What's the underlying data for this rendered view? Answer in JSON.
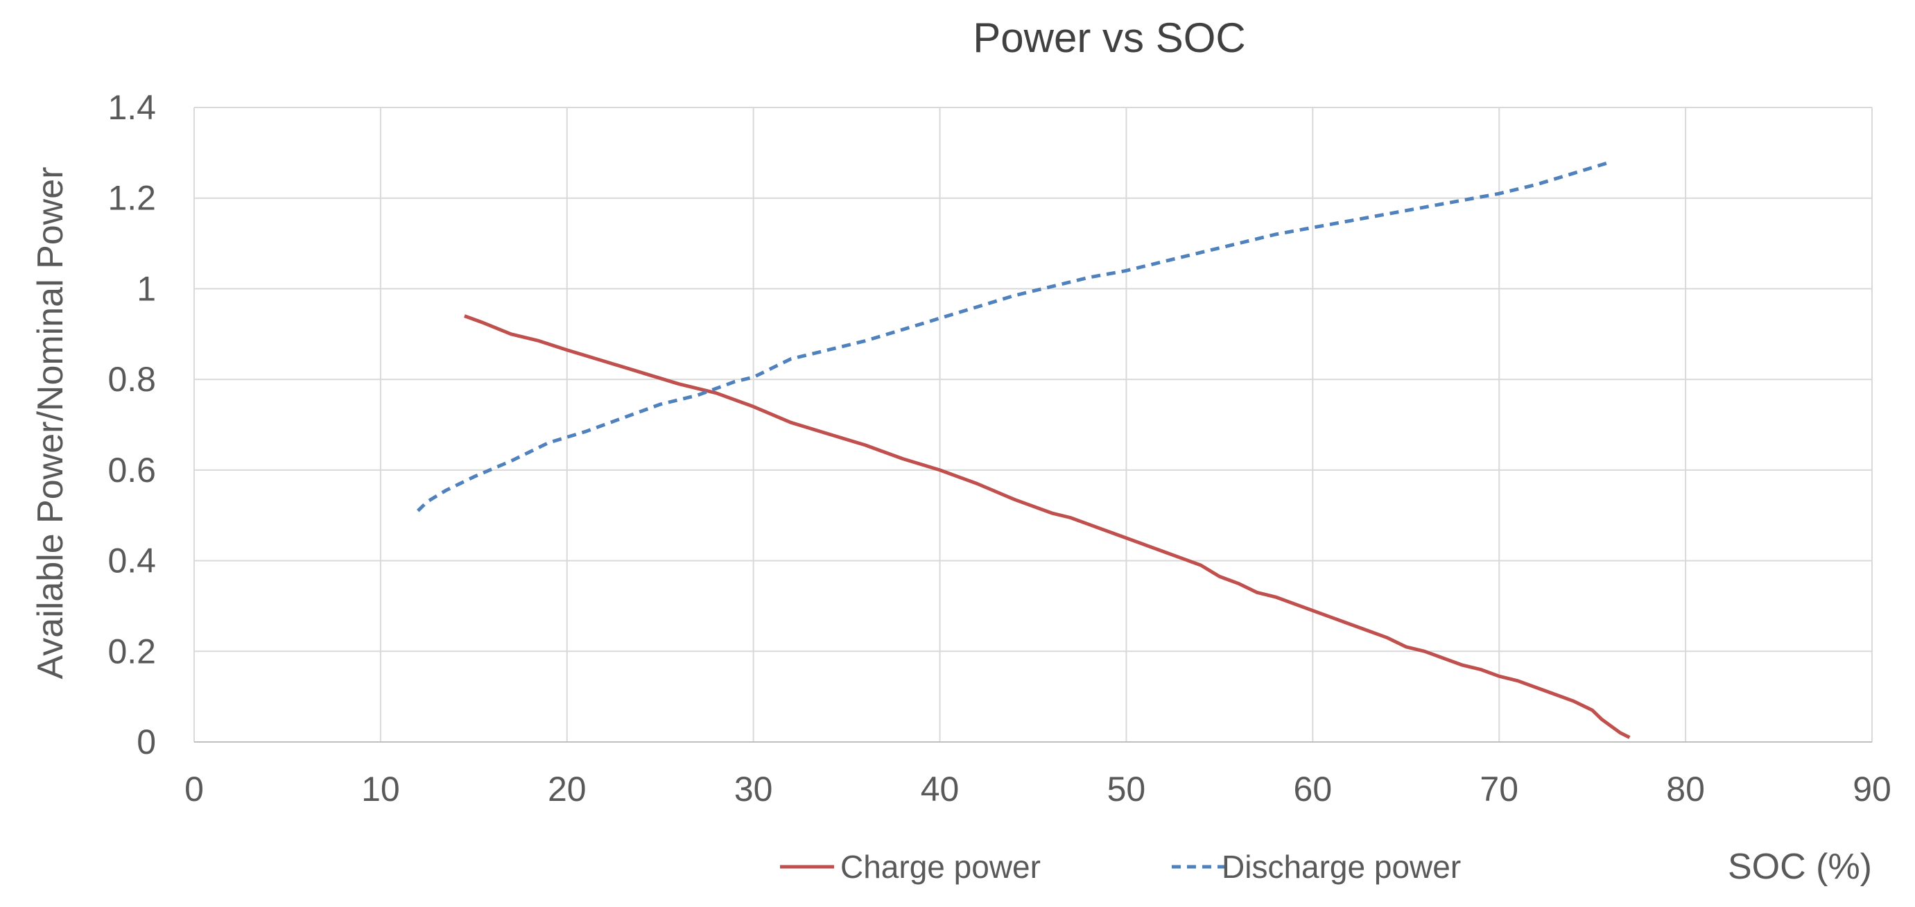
{
  "chart_data": {
    "type": "line",
    "title": "Power vs SOC",
    "xlabel": "SOC (%)",
    "ylabel": "Available Power/Nominal Power",
    "xlim": [
      0,
      90
    ],
    "ylim": [
      0,
      1.4
    ],
    "xticks": [
      0,
      10,
      20,
      30,
      40,
      50,
      60,
      70,
      80,
      90
    ],
    "yticks": [
      0,
      0.2,
      0.4,
      0.6,
      0.8,
      1,
      1.2,
      1.4
    ],
    "ytick_labels": [
      "0",
      "0.2",
      "0.4",
      "0.6",
      "0.8",
      "1",
      "1.2",
      "1.4"
    ],
    "grid": true,
    "legend_position": "bottom",
    "series": [
      {
        "name": "Charge power",
        "color": "#C0504D",
        "line_style": "solid",
        "x": [
          14.5,
          15.5,
          17,
          18.5,
          20,
          22,
          24,
          26,
          28,
          30,
          32,
          34,
          36,
          38,
          40,
          42,
          44,
          46,
          47,
          48,
          50,
          51,
          52,
          53,
          54,
          55,
          56,
          57,
          58,
          59,
          60,
          61,
          62,
          63,
          64,
          65,
          66,
          67,
          68,
          69,
          70,
          71,
          72,
          73,
          74,
          75,
          75.5,
          76,
          76.5,
          77
        ],
        "y": [
          0.94,
          0.925,
          0.9,
          0.885,
          0.865,
          0.84,
          0.815,
          0.79,
          0.77,
          0.74,
          0.705,
          0.68,
          0.655,
          0.625,
          0.6,
          0.57,
          0.535,
          0.505,
          0.495,
          0.48,
          0.45,
          0.435,
          0.42,
          0.405,
          0.39,
          0.365,
          0.35,
          0.33,
          0.32,
          0.305,
          0.29,
          0.275,
          0.26,
          0.245,
          0.23,
          0.21,
          0.2,
          0.185,
          0.17,
          0.16,
          0.145,
          0.135,
          0.12,
          0.105,
          0.09,
          0.07,
          0.05,
          0.035,
          0.02,
          0.01
        ]
      },
      {
        "name": "Discharge power",
        "color": "#4F81BD",
        "line_style": "dashed",
        "x": [
          12,
          12.5,
          13.5,
          15,
          17,
          19,
          21,
          23,
          25,
          27,
          29,
          30,
          31,
          32,
          34,
          36,
          38,
          40,
          42,
          44,
          46,
          48,
          50,
          52,
          54,
          56,
          58,
          60,
          62,
          64,
          66,
          68,
          70,
          72,
          74,
          76
        ],
        "y": [
          0.51,
          0.53,
          0.555,
          0.585,
          0.62,
          0.66,
          0.685,
          0.715,
          0.745,
          0.765,
          0.795,
          0.805,
          0.825,
          0.845,
          0.865,
          0.885,
          0.91,
          0.935,
          0.96,
          0.985,
          1.005,
          1.025,
          1.04,
          1.06,
          1.08,
          1.1,
          1.12,
          1.135,
          1.15,
          1.165,
          1.18,
          1.195,
          1.21,
          1.23,
          1.255,
          1.28
        ]
      }
    ]
  }
}
